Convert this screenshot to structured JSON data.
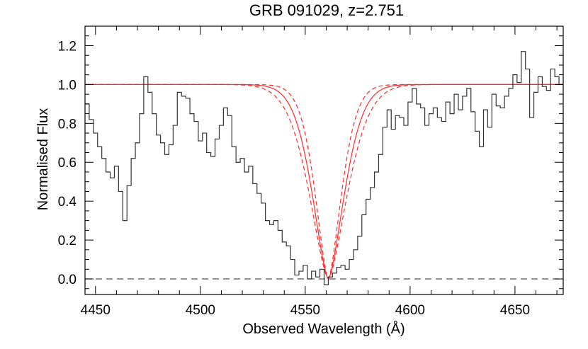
{
  "chart_data": {
    "type": "line",
    "title": "GRB 091029, z=2.751",
    "xlabel": "Observed Wavelength (Å)",
    "ylabel": "Normalised Flux",
    "xlim": [
      4445,
      4673
    ],
    "ylim": [
      -0.08,
      1.3
    ],
    "x_ticks": [
      4450,
      4500,
      4550,
      4600,
      4650
    ],
    "y_ticks": [
      0.0,
      0.2,
      0.4,
      0.6,
      0.8,
      1.0,
      1.2
    ],
    "y_tick_labels": [
      "0.0",
      "0.2",
      "0.4",
      "0.6",
      "0.8",
      "1.0",
      "1.2"
    ],
    "grid": false,
    "legend": "none",
    "colors": {
      "data": "#333333",
      "model": "#ff2a2a",
      "zero_line": "#555555",
      "axes": "#000000"
    },
    "zero_line": 0.0,
    "series": [
      {
        "style": "step",
        "x": [
          4445,
          4447,
          4449,
          4451,
          4453,
          4455,
          4457,
          4459,
          4461,
          4463,
          4465,
          4467,
          4469,
          4471,
          4473,
          4475,
          4477,
          4479,
          4481,
          4483,
          4485,
          4487,
          4489,
          4491,
          4493,
          4495,
          4497,
          4499,
          4501,
          4503,
          4505,
          4507,
          4509,
          4511,
          4513,
          4515,
          4517,
          4519,
          4521,
          4523,
          4525,
          4527,
          4529,
          4531,
          4533,
          4535,
          4537,
          4539,
          4541,
          4543,
          4545,
          4547,
          4549,
          4551,
          4553,
          4555,
          4557,
          4559,
          4561,
          4563,
          4565,
          4567,
          4569,
          4571,
          4573,
          4575,
          4577,
          4579,
          4581,
          4583,
          4585,
          4587,
          4589,
          4591,
          4593,
          4595,
          4597,
          4599,
          4601,
          4603,
          4605,
          4607,
          4609,
          4611,
          4613,
          4615,
          4617,
          4619,
          4621,
          4623,
          4625,
          4627,
          4629,
          4631,
          4633,
          4635,
          4637,
          4639,
          4641,
          4643,
          4645,
          4647,
          4649,
          4651,
          4653,
          4655,
          4657,
          4659,
          4661,
          4663,
          4665,
          4667,
          4669,
          4671
        ],
        "y": [
          0.9,
          0.82,
          0.75,
          0.68,
          0.62,
          0.55,
          0.52,
          0.58,
          0.45,
          0.3,
          0.48,
          0.62,
          0.7,
          0.85,
          1.04,
          0.96,
          0.85,
          0.74,
          0.7,
          0.64,
          0.69,
          0.79,
          0.96,
          0.94,
          0.93,
          0.85,
          0.81,
          0.71,
          0.75,
          0.65,
          0.63,
          0.72,
          0.79,
          0.88,
          0.84,
          0.68,
          0.6,
          0.62,
          0.55,
          0.58,
          0.49,
          0.44,
          0.39,
          0.3,
          0.28,
          0.3,
          0.25,
          0.19,
          0.17,
          0.1,
          0.02,
          0.04,
          0.07,
          0.0,
          0.04,
          0.01,
          0.05,
          -0.03,
          0.01,
          0.03,
          0.06,
          0.07,
          0.05,
          0.1,
          0.15,
          0.22,
          0.33,
          0.41,
          0.47,
          0.55,
          0.64,
          0.78,
          0.87,
          0.77,
          0.84,
          0.83,
          0.79,
          0.91,
          0.98,
          0.9,
          0.88,
          0.79,
          0.85,
          0.88,
          0.83,
          0.81,
          0.91,
          0.85,
          0.95,
          0.87,
          0.94,
          0.98,
          0.86,
          0.76,
          0.68,
          0.87,
          0.78,
          0.95,
          0.89,
          0.88,
          0.94,
          0.98,
          1.05,
          1.01,
          1.17,
          1.08,
          0.83,
          0.96,
          1.04,
          0.99,
          0.97,
          1.08,
          1.04,
          1.0
        ]
      },
      {
        "name": "Voigt fit",
        "style": "model",
        "center": 4561.0,
        "width": 11.0
      },
      {
        "name": "Voigt fit lower bound",
        "style": "model-dashed",
        "center": 4561.0,
        "width": 9.0
      },
      {
        "name": "Voigt fit upper bound",
        "style": "model-dashed",
        "center": 4561.0,
        "width": 13.0
      }
    ]
  }
}
